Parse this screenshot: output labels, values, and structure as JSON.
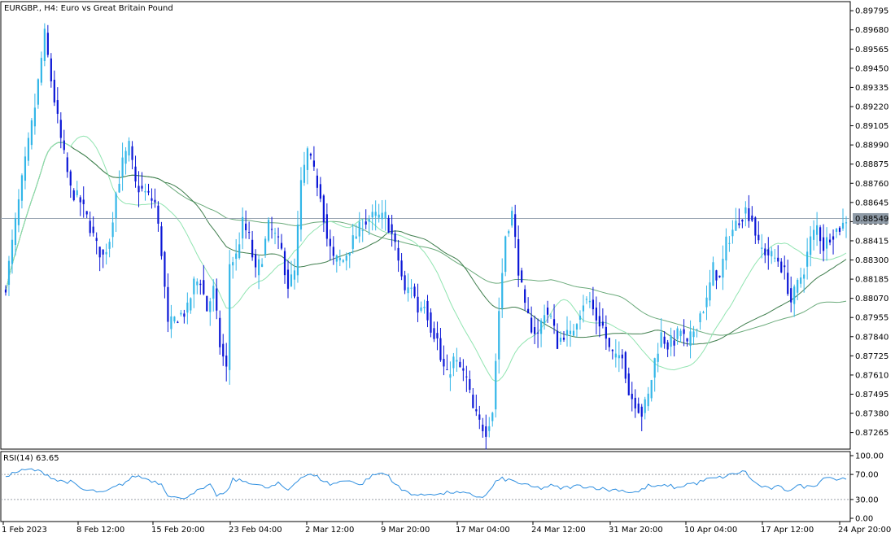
{
  "window_title": "EURGBP., H4:  Euro vs Great Britain Pound",
  "chart_data": [
    {
      "type": "candlestick",
      "title": "EURGBP., H4:  Euro vs Great Britain Pound",
      "symbol": "EURGBP.",
      "timeframe": "H4",
      "price_ticks": [
        "0.89795",
        "0.89680",
        "0.89565",
        "0.89450",
        "0.89335",
        "0.89220",
        "0.89105",
        "0.88990",
        "0.88875",
        "0.88760",
        "0.88645",
        "0.88530",
        "0.88415",
        "0.88300",
        "0.88185",
        "0.88070",
        "0.87955",
        "0.87840",
        "0.87725",
        "0.87610",
        "0.87495",
        "0.87380",
        "0.87265"
      ],
      "ylim": [
        0.87185,
        0.8983
      ],
      "current_price": "0.88549",
      "current_price_value": 0.88549,
      "x_ticks": [
        "1 Feb 2023",
        "8 Feb 12:00",
        "15 Feb 20:00",
        "23 Feb 04:00",
        "2 Mar 12:00",
        "9 Mar 20:00",
        "17 Mar 04:00",
        "24 Mar 12:00",
        "31 Mar 20:00",
        "10 Apr 04:00",
        "17 Apr 12:00",
        "24 Apr 20:00"
      ],
      "anchors": [
        [
          0,
          0.8815
        ],
        [
          5,
          0.8877
        ],
        [
          9,
          0.8922
        ],
        [
          12,
          0.8965
        ],
        [
          14,
          0.8938
        ],
        [
          17,
          0.8902
        ],
        [
          20,
          0.8872
        ],
        [
          23,
          0.8865
        ],
        [
          26,
          0.885
        ],
        [
          28,
          0.8838
        ],
        [
          30,
          0.8832
        ],
        [
          32,
          0.8843
        ],
        [
          34,
          0.887
        ],
        [
          36,
          0.8888
        ],
        [
          38,
          0.8898
        ],
        [
          40,
          0.8875
        ],
        [
          43,
          0.887
        ],
        [
          46,
          0.8864
        ],
        [
          48,
          0.8835
        ],
        [
          50,
          0.879
        ],
        [
          53,
          0.8796
        ],
        [
          56,
          0.88
        ],
        [
          58,
          0.8816
        ],
        [
          60,
          0.8818
        ],
        [
          62,
          0.88
        ],
        [
          64,
          0.8812
        ],
        [
          66,
          0.8779
        ],
        [
          68,
          0.8764
        ],
        [
          69,
          0.8828
        ],
        [
          71,
          0.8832
        ],
        [
          73,
          0.8852
        ],
        [
          75,
          0.8843
        ],
        [
          77,
          0.8822
        ],
        [
          79,
          0.8832
        ],
        [
          81,
          0.885
        ],
        [
          83,
          0.8844
        ],
        [
          85,
          0.8835
        ],
        [
          87,
          0.8815
        ],
        [
          89,
          0.8822
        ],
        [
          91,
          0.8875
        ],
        [
          93,
          0.8895
        ],
        [
          95,
          0.8882
        ],
        [
          97,
          0.887
        ],
        [
          99,
          0.8843
        ],
        [
          101,
          0.883
        ],
        [
          104,
          0.883
        ],
        [
          106,
          0.8838
        ],
        [
          108,
          0.8845
        ],
        [
          110,
          0.8852
        ],
        [
          112,
          0.8855
        ],
        [
          114,
          0.8856
        ],
        [
          116,
          0.8855
        ],
        [
          117,
          0.8856
        ],
        [
          119,
          0.8845
        ],
        [
          121,
          0.883
        ],
        [
          123,
          0.881
        ],
        [
          125,
          0.8815
        ],
        [
          127,
          0.88
        ],
        [
          129,
          0.8805
        ],
        [
          131,
          0.879
        ],
        [
          133,
          0.8782
        ],
        [
          134,
          0.877
        ],
        [
          136,
          0.876
        ],
        [
          138,
          0.877
        ],
        [
          140,
          0.8765
        ],
        [
          142,
          0.8758
        ],
        [
          144,
          0.874
        ],
        [
          146,
          0.8732
        ],
        [
          148,
          0.8728
        ],
        [
          150,
          0.874
        ],
        [
          152,
          0.88
        ],
        [
          154,
          0.8845
        ],
        [
          156,
          0.8858
        ],
        [
          158,
          0.8825
        ],
        [
          160,
          0.88
        ],
        [
          162,
          0.879
        ],
        [
          164,
          0.8785
        ],
        [
          166,
          0.88
        ],
        [
          168,
          0.8795
        ],
        [
          170,
          0.878
        ],
        [
          172,
          0.8786
        ],
        [
          174,
          0.8784
        ],
        [
          176,
          0.8795
        ],
        [
          178,
          0.8805
        ],
        [
          180,
          0.8805
        ],
        [
          182,
          0.8795
        ],
        [
          184,
          0.879
        ],
        [
          186,
          0.8776
        ],
        [
          188,
          0.877
        ],
        [
          190,
          0.8775
        ],
        [
          192,
          0.875
        ],
        [
          194,
          0.8745
        ],
        [
          196,
          0.8738
        ],
        [
          198,
          0.8748
        ],
        [
          200,
          0.877
        ],
        [
          202,
          0.8785
        ],
        [
          204,
          0.8779
        ],
        [
          206,
          0.8782
        ],
        [
          208,
          0.8788
        ],
        [
          210,
          0.8778
        ],
        [
          212,
          0.8788
        ],
        [
          214,
          0.8798
        ],
        [
          216,
          0.8805
        ],
        [
          218,
          0.8825
        ],
        [
          220,
          0.8818
        ],
        [
          222,
          0.884
        ],
        [
          224,
          0.8848
        ],
        [
          226,
          0.8855
        ],
        [
          228,
          0.886
        ],
        [
          230,
          0.8855
        ],
        [
          232,
          0.8838
        ],
        [
          234,
          0.8835
        ],
        [
          236,
          0.8832
        ],
        [
          238,
          0.883
        ],
        [
          240,
          0.8822
        ],
        [
          242,
          0.8805
        ],
        [
          244,
          0.8815
        ],
        [
          246,
          0.8825
        ],
        [
          248,
          0.8842
        ],
        [
          250,
          0.885
        ],
        [
          252,
          0.8838
        ],
        [
          254,
          0.8845
        ],
        [
          256,
          0.8848
        ],
        [
          258,
          0.8851
        ],
        [
          259,
          0.8855
        ]
      ],
      "rsi_anchors": [
        [
          0,
          68
        ],
        [
          4,
          75
        ],
        [
          8,
          78
        ],
        [
          12,
          72
        ],
        [
          16,
          60
        ],
        [
          20,
          58
        ],
        [
          24,
          45
        ],
        [
          28,
          43
        ],
        [
          30,
          40
        ],
        [
          33,
          48
        ],
        [
          36,
          55
        ],
        [
          40,
          68
        ],
        [
          44,
          62
        ],
        [
          48,
          55
        ],
        [
          50,
          38
        ],
        [
          54,
          30
        ],
        [
          58,
          42
        ],
        [
          60,
          45
        ],
        [
          63,
          52
        ],
        [
          65,
          37
        ],
        [
          68,
          40
        ],
        [
          70,
          62
        ],
        [
          72,
          60
        ],
        [
          75,
          58
        ],
        [
          78,
          52
        ],
        [
          81,
          48
        ],
        [
          84,
          55
        ],
        [
          87,
          45
        ],
        [
          90,
          62
        ],
        [
          93,
          70
        ],
        [
          96,
          66
        ],
        [
          100,
          54
        ],
        [
          103,
          58
        ],
        [
          106,
          62
        ],
        [
          109,
          52
        ],
        [
          112,
          65
        ],
        [
          114,
          70
        ],
        [
          116,
          72
        ],
        [
          118,
          68
        ],
        [
          120,
          55
        ],
        [
          122,
          45
        ],
        [
          124,
          42
        ],
        [
          126,
          38
        ],
        [
          128,
          36
        ],
        [
          131,
          40
        ],
        [
          134,
          38
        ],
        [
          137,
          42
        ],
        [
          140,
          40
        ],
        [
          143,
          38
        ],
        [
          146,
          34
        ],
        [
          148,
          36
        ],
        [
          151,
          58
        ],
        [
          153,
          63
        ],
        [
          156,
          60
        ],
        [
          159,
          55
        ],
        [
          162,
          50
        ],
        [
          165,
          48
        ],
        [
          168,
          52
        ],
        [
          171,
          48
        ],
        [
          174,
          50
        ],
        [
          177,
          52
        ],
        [
          180,
          50
        ],
        [
          183,
          48
        ],
        [
          186,
          45
        ],
        [
          189,
          46
        ],
        [
          192,
          42
        ],
        [
          195,
          42
        ],
        [
          198,
          52
        ],
        [
          201,
          50
        ],
        [
          204,
          53
        ],
        [
          207,
          48
        ],
        [
          210,
          55
        ],
        [
          213,
          56
        ],
        [
          216,
          62
        ],
        [
          219,
          64
        ],
        [
          222,
          67
        ],
        [
          225,
          72
        ],
        [
          228,
          75
        ],
        [
          230,
          60
        ],
        [
          232,
          53
        ],
        [
          235,
          47
        ],
        [
          238,
          50
        ],
        [
          241,
          45
        ],
        [
          244,
          52
        ],
        [
          247,
          50
        ],
        [
          250,
          55
        ],
        [
          253,
          68
        ],
        [
          256,
          62
        ],
        [
          259,
          64
        ]
      ],
      "rsi": {
        "label": "RSI(14) 63.65",
        "value": 63.65,
        "ticks": [
          "100.00",
          "70.00",
          "30.00",
          "0.00"
        ],
        "levels": [
          70,
          30
        ]
      },
      "ma_fast": {
        "period": 21
      },
      "ma_mid": {
        "period": 50
      },
      "ma_slow": {
        "period": 100
      },
      "colors": {
        "bull": "#33b6e8",
        "bear": "#0a16d6",
        "ma_fast": "#90e4b0",
        "ma_mid": "#3f7e4d",
        "ma_slow": "#6aaa7a",
        "rsi": "#2f8fe0",
        "grid": "#9aa0a6",
        "price_line": "#9aa6b2",
        "tag_bg": "#8e9aa6"
      }
    }
  ]
}
